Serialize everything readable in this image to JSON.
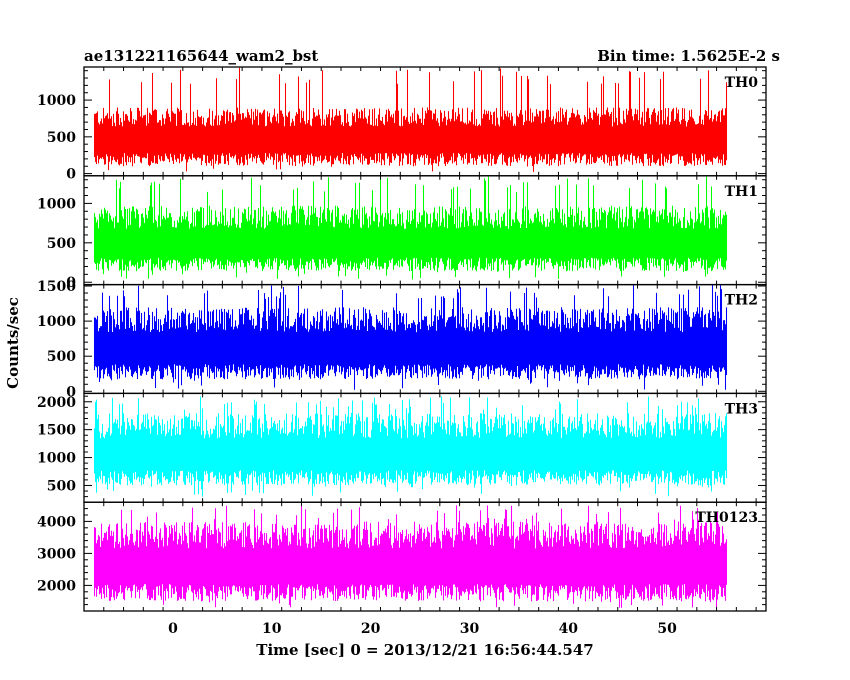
{
  "header": {
    "title": "ae131221165644_wam2_bst",
    "bin_time": "Bin time: 1.5625E-2 s"
  },
  "chart_data": {
    "type": "line",
    "title": "ae131221165644_wam2_bst",
    "subtitle": "Bin time: 1.5625E-2 s",
    "xlabel": "Time [sec] 0 = 2013/12/21 16:56:44.547",
    "ylabel": "Counts/sec",
    "xlim": [
      -9,
      60
    ],
    "x_range": [
      -8,
      56
    ],
    "x_ticks": [
      0,
      10,
      20,
      30,
      40,
      50
    ],
    "grid": false,
    "legend": "none",
    "panels": [
      {
        "name": "TH0",
        "color": "#ff0000",
        "ylim": [
          -30,
          1450
        ],
        "y_ticks": [
          0,
          500,
          1000
        ],
        "baseline": 500,
        "noise_low": 400,
        "noise_high": 400,
        "spike_max": 1450,
        "spike_min": 10
      },
      {
        "name": "TH1",
        "color": "#00ff00",
        "ylim": [
          -30,
          1350
        ],
        "y_ticks": [
          0,
          500,
          1000
        ],
        "baseline": 520,
        "noise_low": 380,
        "noise_high": 450,
        "spike_max": 1350,
        "spike_min": 30
      },
      {
        "name": "TH2",
        "color": "#0000ff",
        "ylim": [
          -30,
          1520
        ],
        "y_ticks": [
          0,
          500,
          1000,
          1500
        ],
        "baseline": 650,
        "noise_low": 480,
        "noise_high": 550,
        "spike_max": 1520,
        "spike_min": 20
      },
      {
        "name": "TH3",
        "color": "#00ffff",
        "ylim": [
          200,
          2150
        ],
        "y_ticks": [
          500,
          1000,
          1500,
          2000
        ],
        "baseline": 1100,
        "noise_low": 600,
        "noise_high": 700,
        "spike_max": 2100,
        "spike_min": 300
      },
      {
        "name": "TH0123",
        "color": "#ff00ff",
        "ylim": [
          1200,
          4600
        ],
        "y_ticks": [
          2000,
          3000,
          4000
        ],
        "baseline": 2700,
        "noise_low": 1200,
        "noise_high": 1300,
        "spike_max": 4500,
        "spike_min": 1300
      }
    ]
  }
}
